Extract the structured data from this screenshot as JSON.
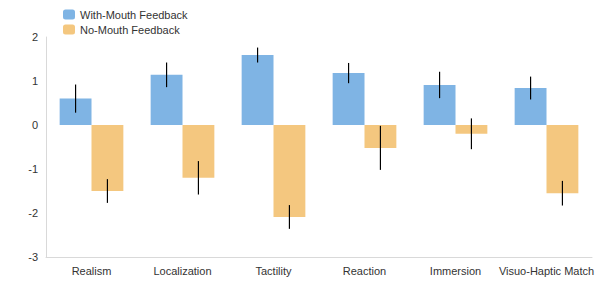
{
  "chart_data": {
    "type": "bar",
    "categories": [
      "Realism",
      "Localization",
      "Tactility",
      "Reaction",
      "Immersion",
      "Visuo-Haptic Match"
    ],
    "series": [
      {
        "name": "With-Mouth Feedback",
        "color": "#7fb4e4",
        "values": [
          0.6,
          1.14,
          1.59,
          1.18,
          0.91,
          0.84
        ],
        "errors": [
          0.32,
          0.28,
          0.17,
          0.23,
          0.3,
          0.26
        ]
      },
      {
        "name": "No-Mouth Feedback",
        "color": "#f4c77f",
        "values": [
          -1.5,
          -1.2,
          -2.09,
          -0.52,
          -0.2,
          -1.55
        ],
        "errors": [
          0.27,
          0.38,
          0.27,
          0.5,
          0.35,
          0.28
        ]
      }
    ],
    "ylim": [
      -3,
      2
    ],
    "yticks": [
      -3,
      -2,
      -1,
      0,
      1,
      2
    ],
    "grid": false,
    "legend": "upper left"
  }
}
